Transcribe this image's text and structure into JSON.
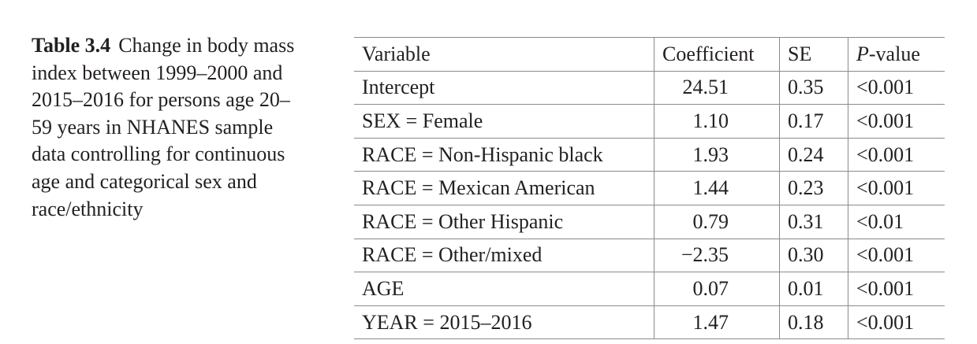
{
  "caption": {
    "label": "Table 3.4",
    "text": "Change in body mass index between 1999–2000 and 2015–2016 for persons age 20–59 years in NHANES sample data controlling for continuous age and categorical sex and race/ethnicity"
  },
  "table": {
    "headers": {
      "variable": "Variable",
      "coefficient": "Coefficient",
      "se": "SE",
      "p_prefix": "P",
      "p_suffix": "-value"
    },
    "rows": [
      {
        "variable": "Intercept",
        "coefficient": "24.51",
        "se": "0.35",
        "p": "<0.001"
      },
      {
        "variable": "SEX = Female",
        "coefficient": "1.10",
        "se": "0.17",
        "p": "<0.001"
      },
      {
        "variable": "RACE = Non-Hispanic black",
        "coefficient": "1.93",
        "se": "0.24",
        "p": "<0.001"
      },
      {
        "variable": "RACE = Mexican American",
        "coefficient": "1.44",
        "se": "0.23",
        "p": "<0.001"
      },
      {
        "variable": "RACE = Other Hispanic",
        "coefficient": "0.79",
        "se": "0.31",
        "p": "<0.01"
      },
      {
        "variable": "RACE = Other/mixed",
        "coefficient": "−2.35",
        "se": "0.30",
        "p": "<0.001"
      },
      {
        "variable": "AGE",
        "coefficient": "0.07",
        "se": "0.01",
        "p": "<0.001"
      },
      {
        "variable": "YEAR = 2015–2016",
        "coefficient": "1.47",
        "se": "0.18",
        "p": "<0.001"
      }
    ]
  }
}
